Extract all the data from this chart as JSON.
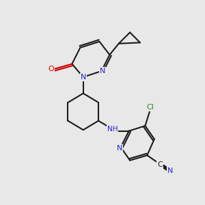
{
  "bg_color": "#e8e8e8",
  "bond_color": "#1a1a1a",
  "N_color": "#2222cc",
  "O_color": "#cc0000",
  "Cl_color": "#228822",
  "bond_lw": 1.5,
  "xlim": [
    0,
    10
  ],
  "ylim": [
    0,
    10
  ]
}
